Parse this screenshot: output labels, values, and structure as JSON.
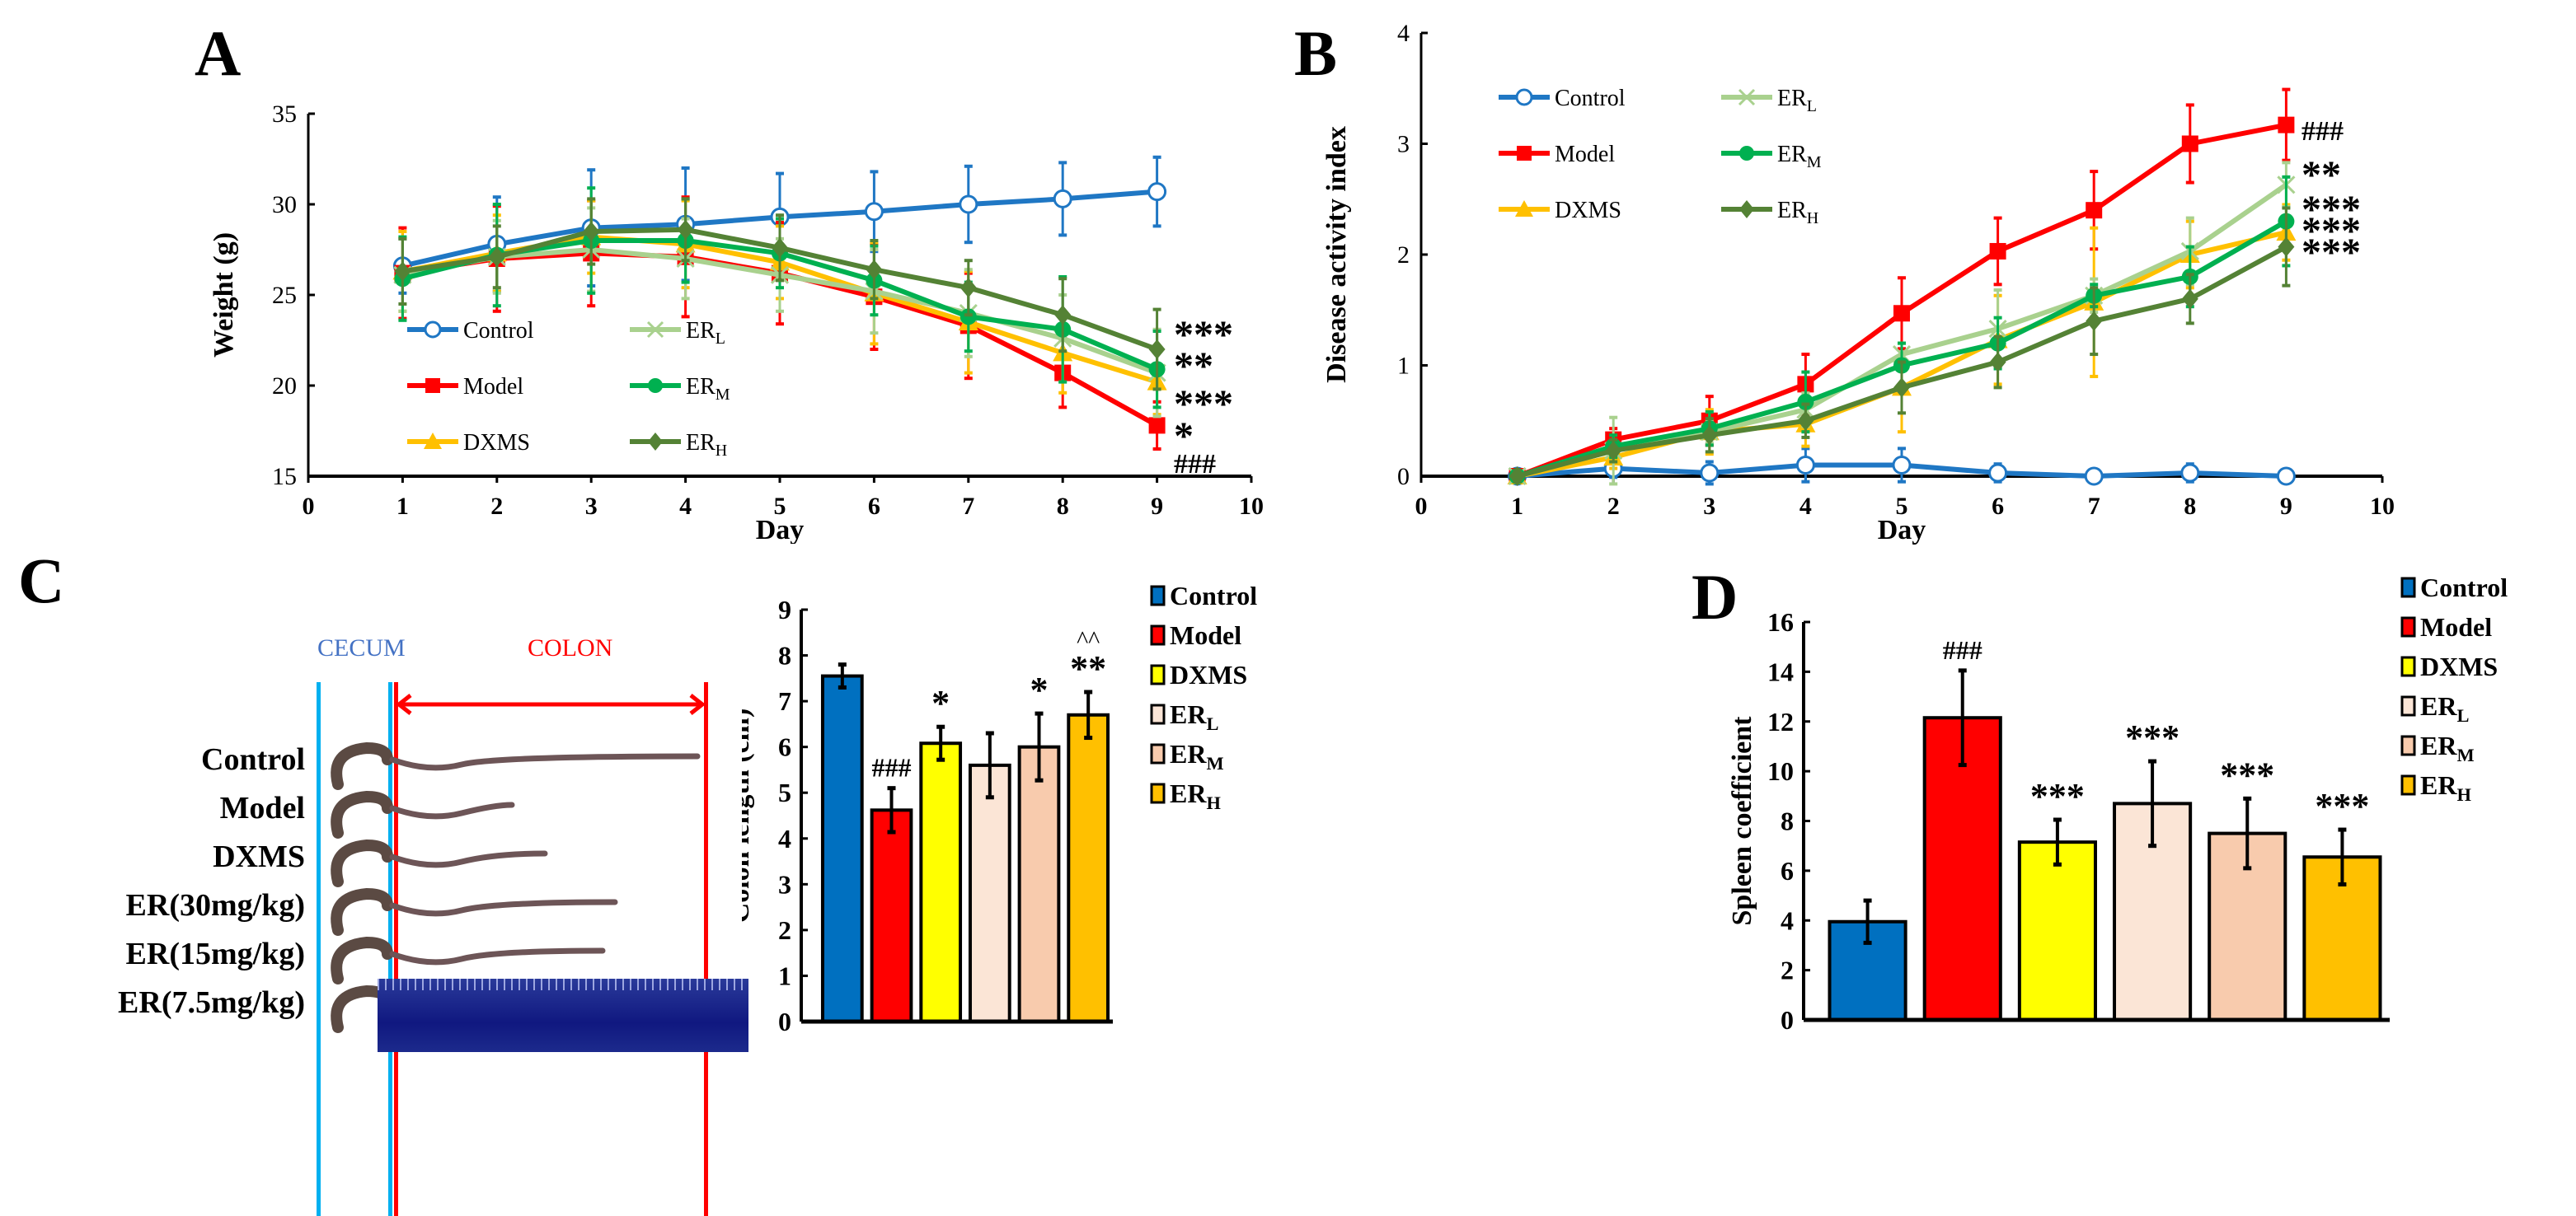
{
  "panels": {
    "A": "A",
    "B": "B",
    "C": "C",
    "D": "D"
  },
  "colors": {
    "Control": "#1f77c4",
    "Model": "#ff0000",
    "DXMS": "#ffc000",
    "ER_L": "#a9d18e",
    "ER_M": "#00b050",
    "ER_H": "#548235"
  },
  "bar_colors": [
    "#0070c0",
    "#ff0000",
    "#ffff00",
    "#fbe5d6",
    "#f8cbad",
    "#ffc000"
  ],
  "photo": {
    "cecum_label": "CECUM",
    "colon_label": "COLON",
    "rows": [
      "Control",
      "Model",
      "DXMS",
      "ER(30mg/kg)",
      "ER(15mg/kg)",
      "ER(7.5mg/kg)"
    ]
  },
  "chart_data": [
    {
      "id": "A",
      "type": "line",
      "title": "",
      "xlabel": "Day",
      "ylabel": "Weight (g)",
      "xlim": [
        0,
        10
      ],
      "ylim": [
        15,
        35
      ],
      "xticks": [
        0,
        1,
        2,
        3,
        4,
        5,
        6,
        7,
        8,
        9,
        10
      ],
      "yticks": [
        15,
        20,
        25,
        30,
        35
      ],
      "x": [
        1,
        2,
        3,
        4,
        5,
        6,
        7,
        8,
        9
      ],
      "legend": {
        "placement": "lower-left",
        "entries": [
          {
            "key": "Control",
            "label": "Control",
            "sub": ""
          },
          {
            "key": "ER_L",
            "label": "ER",
            "sub": "L"
          },
          {
            "key": "Model",
            "label": "Model",
            "sub": ""
          },
          {
            "key": "ER_M",
            "label": "ER",
            "sub": "M"
          },
          {
            "key": "DXMS",
            "label": "DXMS",
            "sub": ""
          },
          {
            "key": "ER_H",
            "label": "ER",
            "sub": "H"
          }
        ]
      },
      "series": [
        {
          "key": "Control",
          "marker": "circle-open",
          "values": [
            26.6,
            27.8,
            28.7,
            28.9,
            29.3,
            29.6,
            30.0,
            30.3,
            30.7
          ],
          "errors": [
            1.5,
            2.6,
            3.2,
            3.1,
            2.4,
            2.2,
            2.1,
            2.0,
            1.9
          ]
        },
        {
          "key": "Model",
          "marker": "square",
          "values": [
            26.2,
            27.0,
            27.3,
            27.1,
            26.2,
            24.9,
            23.3,
            20.7,
            17.8
          ],
          "errors": [
            2.5,
            2.9,
            2.9,
            3.3,
            2.8,
            2.9,
            2.9,
            1.9,
            1.3
          ]
        },
        {
          "key": "DXMS",
          "marker": "triangle",
          "values": [
            26.3,
            27.3,
            28.2,
            27.8,
            26.8,
            25.1,
            23.5,
            21.8,
            20.2
          ],
          "errors": [
            2.2,
            2.1,
            2.0,
            2.4,
            2.0,
            2.8,
            2.8,
            2.2,
            1.8
          ]
        },
        {
          "key": "ER_L",
          "marker": "x",
          "values": [
            26.1,
            27.1,
            27.5,
            27.0,
            26.1,
            25.2,
            24.0,
            22.6,
            20.7
          ],
          "errors": [
            2.0,
            2.0,
            2.3,
            2.2,
            2.0,
            2.3,
            2.4,
            2.4,
            2.4
          ]
        },
        {
          "key": "ER_M",
          "marker": "circle",
          "values": [
            25.9,
            27.2,
            28.0,
            28.0,
            27.3,
            25.8,
            23.8,
            23.1,
            20.9
          ],
          "errors": [
            2.3,
            2.8,
            2.9,
            2.3,
            1.9,
            1.9,
            1.9,
            2.9,
            2.1
          ]
        },
        {
          "key": "ER_H",
          "marker": "diamond",
          "values": [
            26.3,
            27.1,
            28.5,
            28.6,
            27.6,
            26.4,
            25.4,
            23.9,
            22.0
          ],
          "errors": [
            1.8,
            1.7,
            1.8,
            1.7,
            1.8,
            1.6,
            1.5,
            2.0,
            2.2
          ]
        }
      ],
      "annotations": [
        "***",
        "**",
        "***",
        "*",
        "###"
      ]
    },
    {
      "id": "B",
      "type": "line",
      "title": "",
      "xlabel": "Day",
      "ylabel": "Disease activity index",
      "xlim": [
        0,
        10
      ],
      "ylim": [
        0,
        4
      ],
      "xticks": [
        0,
        1,
        2,
        3,
        4,
        5,
        6,
        7,
        8,
        9,
        10
      ],
      "yticks": [
        0,
        1,
        2,
        3,
        4
      ],
      "x": [
        1,
        2,
        3,
        4,
        5,
        6,
        7,
        8,
        9
      ],
      "legend": {
        "placement": "top-left",
        "entries": [
          {
            "key": "Control",
            "label": "Control",
            "sub": ""
          },
          {
            "key": "ER_L",
            "label": "ER",
            "sub": "L"
          },
          {
            "key": "Model",
            "label": "Model",
            "sub": ""
          },
          {
            "key": "ER_M",
            "label": "ER",
            "sub": "M"
          },
          {
            "key": "DXMS",
            "label": "DXMS",
            "sub": ""
          },
          {
            "key": "ER_H",
            "label": "ER",
            "sub": "H"
          }
        ]
      },
      "series": [
        {
          "key": "Control",
          "marker": "circle-open",
          "values": [
            0,
            0.07,
            0.03,
            0.1,
            0.1,
            0.03,
            0,
            0.03,
            0
          ],
          "errors": [
            0.05,
            0.08,
            0.1,
            0.15,
            0.15,
            0.08,
            0,
            0.08,
            0
          ]
        },
        {
          "key": "Model",
          "marker": "square",
          "values": [
            0,
            0.33,
            0.5,
            0.83,
            1.47,
            2.03,
            2.4,
            3.0,
            3.17
          ],
          "errors": [
            0.05,
            0.1,
            0.22,
            0.27,
            0.32,
            0.3,
            0.35,
            0.35,
            0.32
          ]
        },
        {
          "key": "DXMS",
          "marker": "triangle",
          "values": [
            0,
            0.17,
            0.4,
            0.47,
            0.8,
            1.23,
            1.57,
            2.0,
            2.2
          ],
          "errors": [
            0.05,
            0.1,
            0.2,
            0.2,
            0.4,
            0.4,
            0.67,
            0.3,
            0.25
          ]
        },
        {
          "key": "ER_L",
          "marker": "x",
          "values": [
            0,
            0.23,
            0.4,
            0.6,
            1.1,
            1.33,
            1.63,
            2.03,
            2.63
          ],
          "errors": [
            0.05,
            0.3,
            0.1,
            0.15,
            0.1,
            0.35,
            0.15,
            0.3,
            0.2
          ]
        },
        {
          "key": "ER_M",
          "marker": "circle",
          "values": [
            0,
            0.27,
            0.43,
            0.67,
            1.0,
            1.2,
            1.63,
            1.8,
            2.3
          ],
          "errors": [
            0.05,
            0.1,
            0.15,
            0.27,
            0.2,
            0.23,
            0.1,
            0.27,
            0.4
          ]
        },
        {
          "key": "ER_H",
          "marker": "diamond",
          "values": [
            0,
            0.23,
            0.37,
            0.5,
            0.8,
            1.03,
            1.4,
            1.6,
            2.07
          ],
          "errors": [
            0.05,
            0.1,
            0.15,
            0.15,
            0.23,
            0.23,
            0.3,
            0.22,
            0.35
          ]
        }
      ],
      "annotations": [
        "###",
        "**",
        "***",
        "***",
        "***"
      ]
    },
    {
      "id": "C",
      "type": "bar",
      "title": "",
      "xlabel": "",
      "ylabel": "Colon length (cm)",
      "ylim": [
        0,
        9
      ],
      "yticks": [
        0,
        1,
        2,
        3,
        4,
        5,
        6,
        7,
        8,
        9
      ],
      "categories": [
        "Control",
        "Model",
        "DXMS",
        "ER_L",
        "ER_M",
        "ER_H"
      ],
      "values": [
        7.55,
        4.62,
        6.08,
        5.6,
        6.0,
        6.7
      ],
      "errors": [
        0.25,
        0.48,
        0.36,
        0.7,
        0.73,
        0.5
      ],
      "annotations": [
        "",
        "###",
        "*",
        "",
        "*",
        "**|^^"
      ],
      "legend": {
        "placement": "right",
        "entries": [
          {
            "label": "Control",
            "sub": ""
          },
          {
            "label": "Model",
            "sub": ""
          },
          {
            "label": "DXMS",
            "sub": ""
          },
          {
            "label": "ER",
            "sub": "L"
          },
          {
            "label": "ER",
            "sub": "M"
          },
          {
            "label": "ER",
            "sub": "H"
          }
        ]
      }
    },
    {
      "id": "D",
      "type": "bar",
      "title": "",
      "xlabel": "",
      "ylabel": "Spleen coefficient",
      "ylim": [
        0,
        16
      ],
      "yticks": [
        0,
        2,
        4,
        6,
        8,
        10,
        12,
        14,
        16
      ],
      "categories": [
        "Control",
        "Model",
        "DXMS",
        "ER_L",
        "ER_M",
        "ER_H"
      ],
      "values": [
        3.95,
        12.15,
        7.15,
        8.7,
        7.5,
        6.55
      ],
      "errors": [
        0.85,
        1.9,
        0.9,
        1.7,
        1.4,
        1.1
      ],
      "annotations": [
        "",
        "###",
        "***",
        "***",
        "***",
        "***"
      ],
      "legend": {
        "placement": "right",
        "entries": [
          {
            "label": "Control",
            "sub": ""
          },
          {
            "label": "Model",
            "sub": ""
          },
          {
            "label": "DXMS",
            "sub": ""
          },
          {
            "label": "ER",
            "sub": "L"
          },
          {
            "label": "ER",
            "sub": "M"
          },
          {
            "label": "ER",
            "sub": "H"
          }
        ]
      }
    }
  ]
}
